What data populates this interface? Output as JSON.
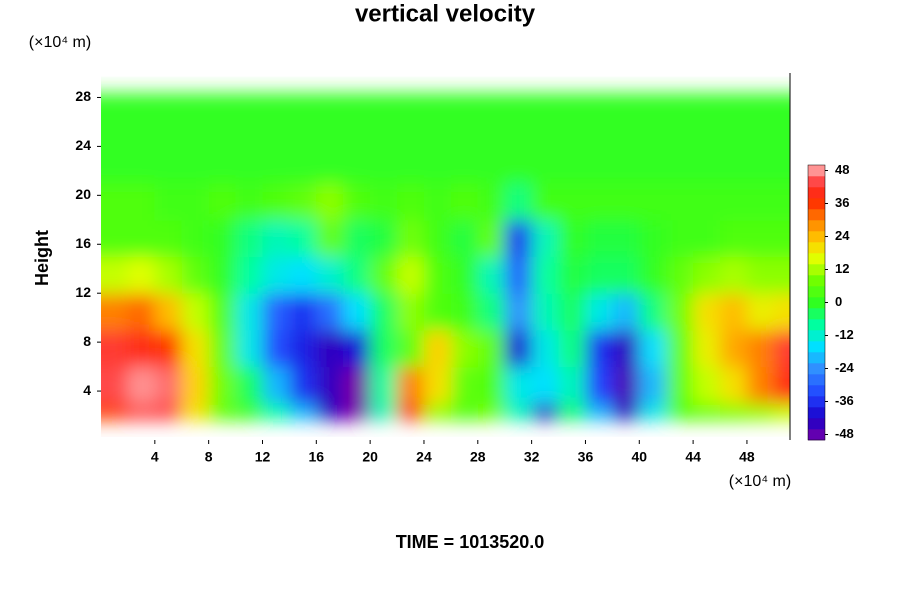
{
  "chart_data": {
    "type": "contour",
    "title": "vertical velocity",
    "ylabel": "Height",
    "xunit": "(×10⁴ m)",
    "yunit": "(×10⁴ m)",
    "footer": "TIME = 1013520.0",
    "xlim": [
      0,
      51.2
    ],
    "ylim": [
      0,
      30
    ],
    "xticks": [
      4,
      8,
      12,
      16,
      20,
      24,
      28,
      32,
      36,
      40,
      44,
      48
    ],
    "yticks": [
      4,
      8,
      12,
      16,
      20,
      24,
      28
    ],
    "x": [
      1,
      3,
      5,
      7,
      9,
      11,
      13,
      15,
      17,
      19,
      21,
      23,
      25,
      27,
      29,
      31,
      33,
      35,
      37,
      39,
      41,
      43,
      45,
      47,
      49,
      51
    ],
    "y": [
      1.5,
      4.5,
      7.5,
      10.5,
      13.5,
      16.5,
      19.5,
      22.5,
      25.5,
      28.5
    ],
    "z": [
      [
        35,
        44,
        44,
        20,
        6,
        2,
        -8,
        -20,
        -44,
        -50,
        -10,
        40,
        10,
        4,
        8,
        -10,
        -44,
        -4,
        -20,
        -44,
        -14,
        4,
        6,
        8,
        10,
        14
      ],
      [
        44,
        48,
        46,
        22,
        8,
        -4,
        -20,
        -36,
        -44,
        -50,
        -8,
        30,
        20,
        6,
        4,
        -14,
        -16,
        -10,
        -34,
        -46,
        -20,
        6,
        14,
        20,
        30,
        40
      ],
      [
        42,
        40,
        36,
        20,
        6,
        -14,
        -32,
        -38,
        -44,
        -40,
        -4,
        6,
        22,
        10,
        6,
        -40,
        -14,
        -6,
        -36,
        -44,
        -16,
        6,
        18,
        26,
        30,
        42
      ],
      [
        30,
        32,
        24,
        14,
        4,
        -14,
        -30,
        -36,
        -28,
        -16,
        -4,
        10,
        4,
        2,
        -6,
        -24,
        -10,
        -4,
        -14,
        -20,
        -6,
        8,
        20,
        24,
        18,
        20
      ],
      [
        14,
        16,
        12,
        6,
        0,
        -8,
        -14,
        -16,
        -12,
        -6,
        6,
        14,
        4,
        0,
        -10,
        -30,
        -8,
        -2,
        -4,
        -4,
        0,
        6,
        10,
        12,
        10,
        10
      ],
      [
        4,
        4,
        4,
        2,
        0,
        -6,
        -10,
        -8,
        6,
        -4,
        -2,
        8,
        2,
        -2,
        6,
        -36,
        -10,
        0,
        -2,
        -2,
        0,
        2,
        2,
        4,
        4,
        4
      ],
      [
        4,
        4,
        2,
        2,
        4,
        2,
        4,
        6,
        10,
        4,
        2,
        4,
        2,
        4,
        2,
        -6,
        2,
        2,
        2,
        2,
        2,
        2,
        2,
        2,
        2,
        2
      ],
      [
        0,
        0,
        0,
        0,
        0,
        0,
        0,
        0,
        0,
        0,
        0,
        0,
        0,
        0,
        0,
        0,
        0,
        0,
        0,
        0,
        0,
        0,
        0,
        0,
        0,
        0
      ],
      [
        0,
        0,
        0,
        0,
        0,
        0,
        0,
        0,
        0,
        0,
        0,
        0,
        0,
        0,
        0,
        0,
        0,
        0,
        0,
        0,
        0,
        0,
        0,
        0,
        0,
        0
      ],
      [
        0,
        0,
        0,
        0,
        0,
        0,
        0,
        0,
        0,
        0,
        0,
        0,
        0,
        0,
        0,
        0,
        0,
        0,
        0,
        0,
        0,
        0,
        0,
        0,
        0,
        0
      ]
    ],
    "clim": [
      -50,
      50
    ],
    "cticks": [
      -48,
      -36,
      -24,
      -12,
      0,
      12,
      24,
      36,
      48
    ],
    "colormap": [
      [
        -50,
        "#7a00a8"
      ],
      [
        -42,
        "#1a00c8"
      ],
      [
        -34,
        "#2040ff"
      ],
      [
        -24,
        "#3090ff"
      ],
      [
        -16,
        "#00e0ff"
      ],
      [
        -8,
        "#00ffa0"
      ],
      [
        0,
        "#30ff20"
      ],
      [
        8,
        "#70ff00"
      ],
      [
        16,
        "#e0ff00"
      ],
      [
        22,
        "#ffd000"
      ],
      [
        30,
        "#ff8000"
      ],
      [
        38,
        "#ff2000"
      ],
      [
        44,
        "#ff4848"
      ],
      [
        50,
        "#ffb8b8"
      ]
    ]
  }
}
